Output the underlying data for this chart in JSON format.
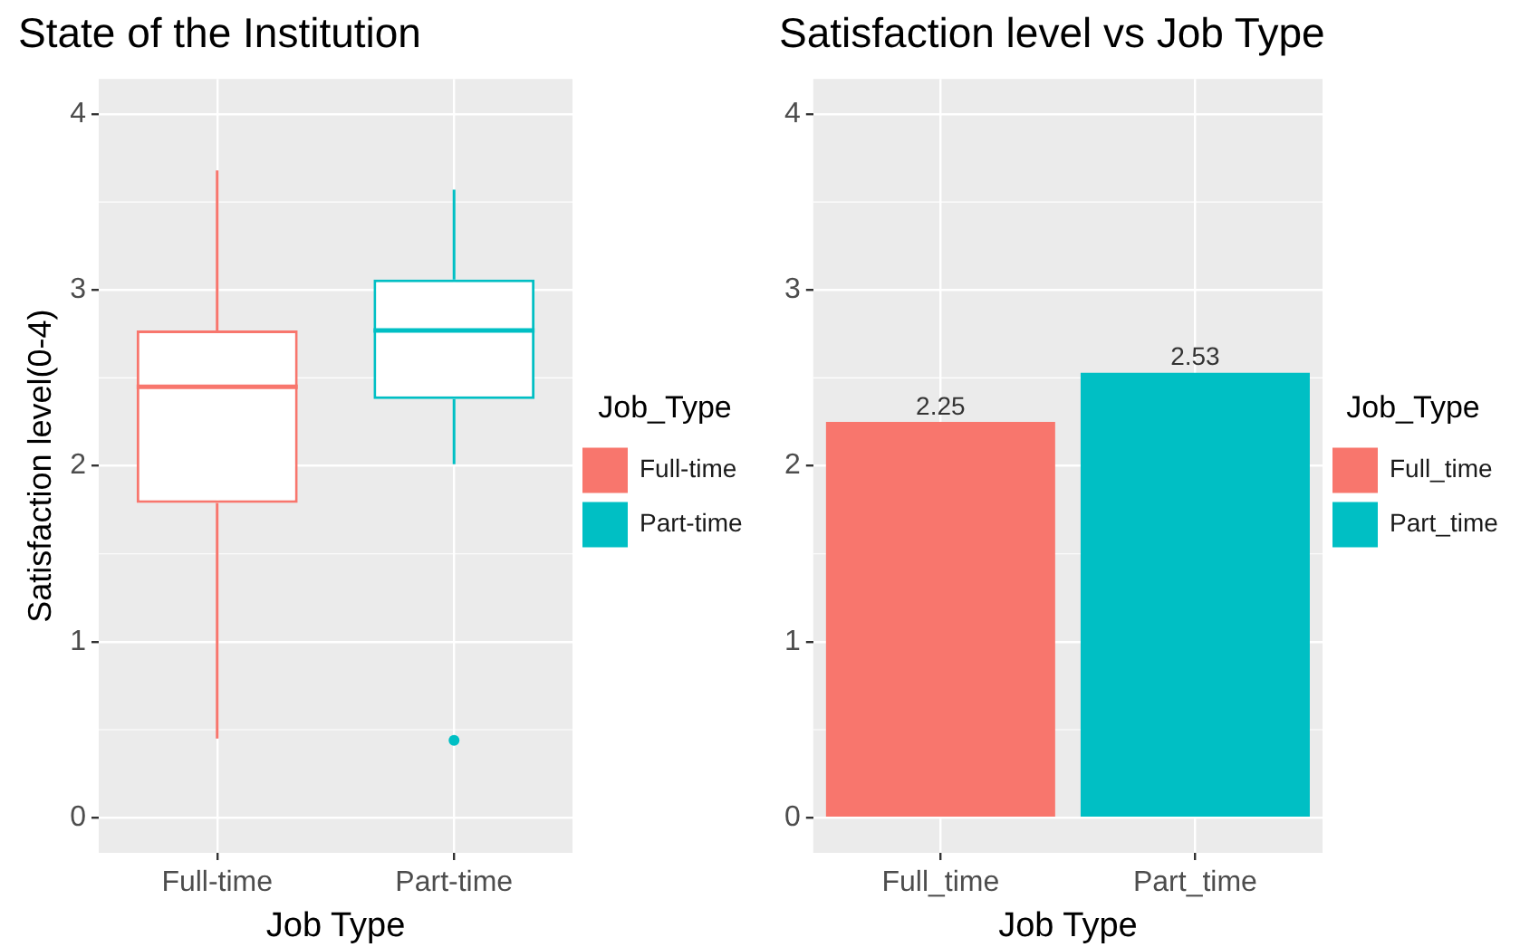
{
  "chart_data": [
    {
      "type": "box",
      "title": "State of the Institution",
      "xlabel": "Job Type",
      "ylabel": "Satisfaction level(0-4)",
      "categories": [
        "Full-time",
        "Part-time"
      ],
      "series": [
        {
          "name": "Full-time",
          "color": "#f8766d",
          "boxes": [
            {
              "low": 0.45,
              "q1": 1.79,
              "median": 2.45,
              "q3": 2.77,
              "high": 3.68
            },
            null
          ]
        },
        {
          "name": "Part-time",
          "color": "#00bfc4",
          "boxes": [
            null,
            {
              "low": 2.01,
              "q1": 2.38,
              "median": 2.77,
              "q3": 3.06,
              "high": 3.57,
              "outliers": [
                0.44
              ]
            }
          ]
        }
      ],
      "ylim": [
        -0.2,
        4.2
      ],
      "yticks": [
        0,
        1,
        2,
        3,
        4
      ],
      "grid": true,
      "legend": "right",
      "legend_title": "Job_Type"
    },
    {
      "type": "bar",
      "title": "Satisfaction level vs Job Type",
      "xlabel": "Job Type",
      "categories": [
        "Full_time",
        "Part_time"
      ],
      "series": [
        {
          "name": "Full_time",
          "color": "#f8766d",
          "values": [
            2.25,
            null
          ]
        },
        {
          "name": "Part_time",
          "color": "#00bfc4",
          "values": [
            null,
            2.53
          ]
        }
      ],
      "ylim": [
        -0.2,
        4.2
      ],
      "yticks": [
        0,
        1,
        2,
        3,
        4
      ],
      "grid": true,
      "data_labels": true,
      "legend": "right",
      "legend_title": "Job_Type"
    }
  ]
}
